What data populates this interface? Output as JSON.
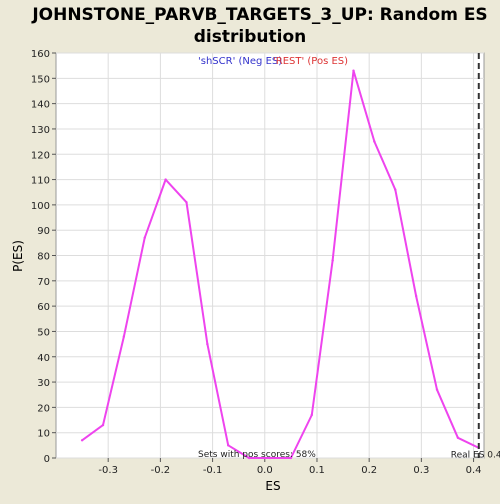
{
  "chart_data": {
    "type": "line",
    "title": "JOHNSTONE_PARVB_TARGETS_3_UP: Random ES distribution",
    "title_lines": [
      "JOHNSTONE_PARVB_TARGETS_3_UP: Random ES",
      "distribution"
    ],
    "xlabel": "ES",
    "ylabel": "P(ES)",
    "xlim": [
      -0.4,
      0.42
    ],
    "ylim": [
      0,
      160
    ],
    "x_ticks": [
      -0.3,
      -0.2,
      -0.1,
      0.0,
      0.1,
      0.2,
      0.3,
      0.4
    ],
    "x_tick_labels": [
      "-0.3",
      "-0.2",
      "-0.1",
      "0.0",
      "0.1",
      "0.2",
      "0.3",
      "0.4"
    ],
    "y_ticks": [
      0,
      10,
      20,
      30,
      40,
      50,
      60,
      70,
      80,
      90,
      100,
      110,
      120,
      130,
      140,
      150,
      160
    ],
    "y_tick_labels": [
      "0",
      "10",
      "20",
      "30",
      "40",
      "50",
      "60",
      "70",
      "80",
      "90",
      "100",
      "110",
      "120",
      "130",
      "140",
      "150",
      "160"
    ],
    "grid": true,
    "series": [
      {
        "name": "Random ES distribution",
        "color": "#ee44ee",
        "x": [
          -0.35,
          -0.31,
          -0.27,
          -0.23,
          -0.19,
          -0.15,
          -0.11,
          -0.07,
          -0.03,
          0.01,
          0.05,
          0.09,
          0.13,
          0.17,
          0.21,
          0.25,
          0.29,
          0.33,
          0.37,
          0.41
        ],
        "y": [
          7,
          13,
          48,
          87,
          110,
          101,
          45,
          5,
          0,
          0,
          0,
          17,
          78,
          153,
          125,
          106,
          64,
          27,
          8,
          4
        ]
      }
    ],
    "real_es": {
      "x": 0.41,
      "label": "Real ES 0.4",
      "color": "#333333"
    },
    "annotations": {
      "neg_label": "'shSCR' (Neg ES)",
      "neg_color": "#3333cc",
      "pos_label": "'REST' (Pos ES)",
      "pos_color": "#dd3333",
      "pos_scores": "Sets with pos scores: 58%"
    }
  }
}
